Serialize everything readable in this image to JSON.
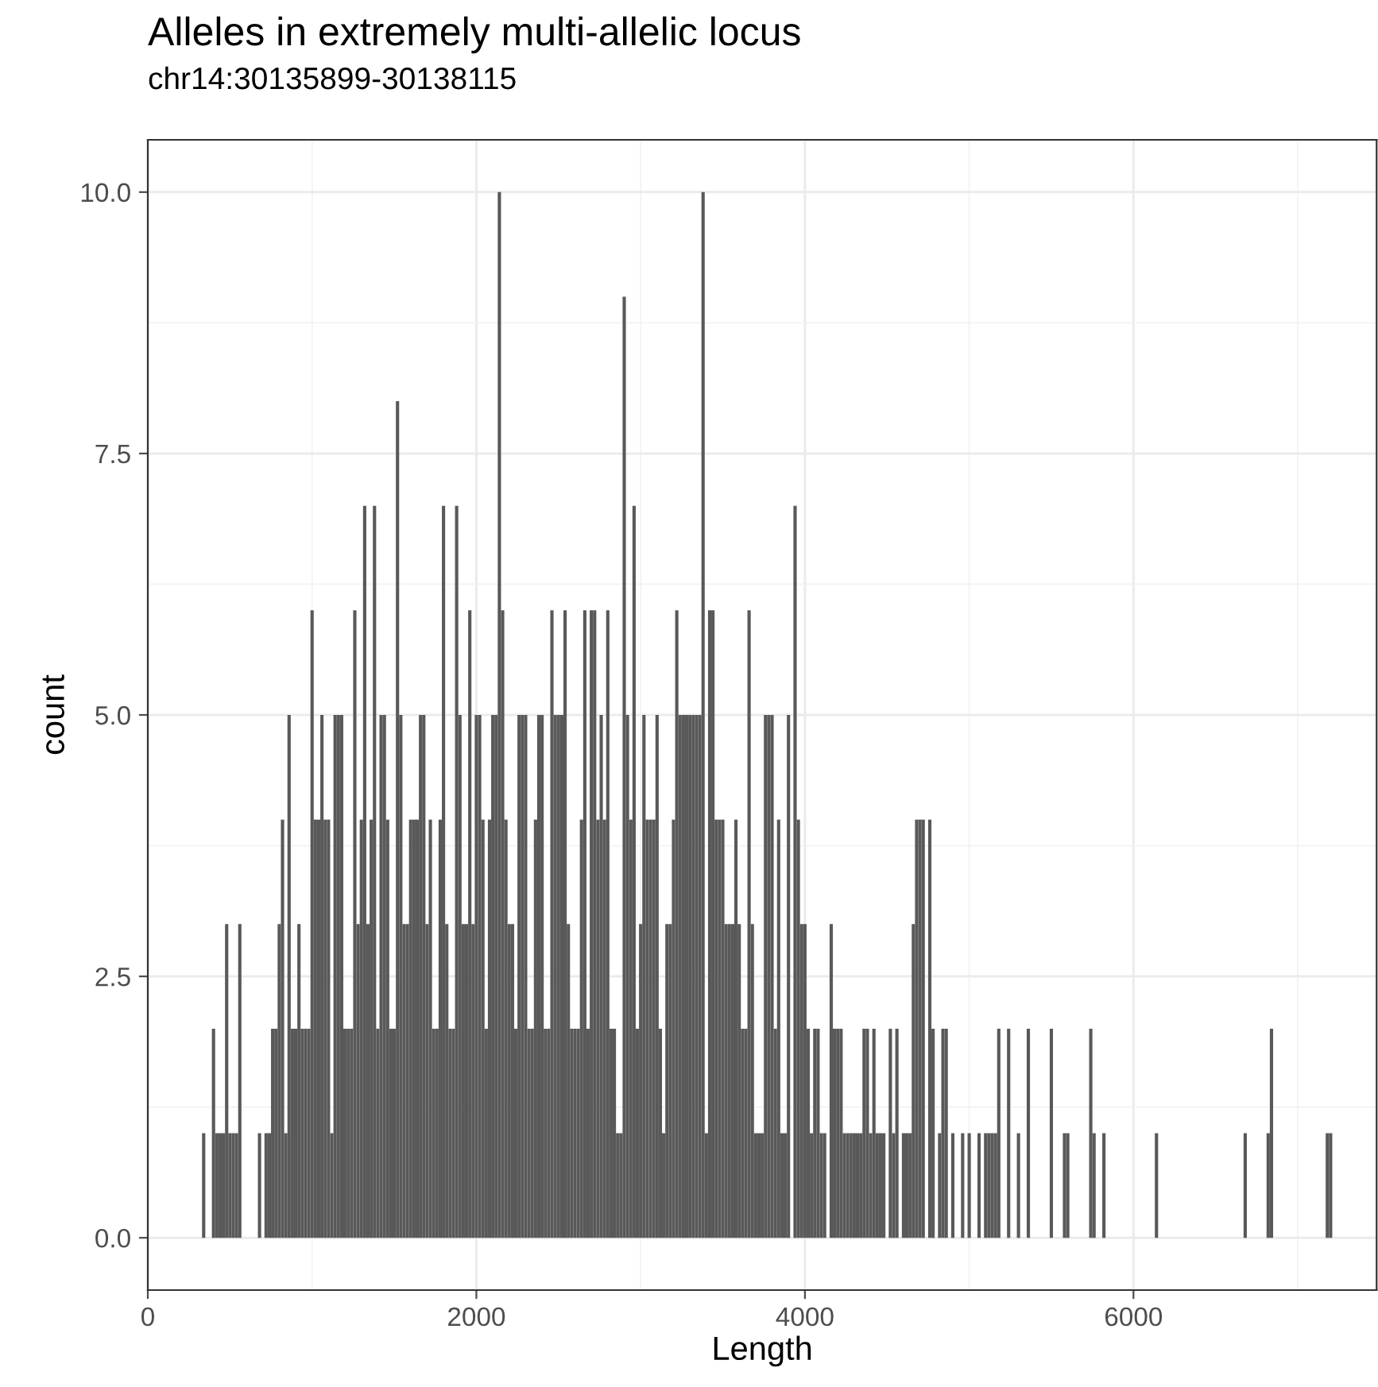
{
  "chart_data": {
    "type": "histogram",
    "title": "Alleles in extremely multi-allelic locus",
    "subtitle": "chr14:30135899-30138115",
    "xlabel": "Length",
    "ylabel": "count",
    "color": "#595959",
    "bins": [
      330,
      350,
      370,
      390,
      410,
      430,
      450,
      470,
      490,
      510,
      530,
      550,
      570,
      590,
      610,
      630,
      650,
      670,
      690,
      710,
      730,
      750,
      770,
      790,
      810,
      830,
      850,
      870,
      890,
      910,
      930,
      950,
      970,
      990,
      1010,
      1030,
      1050,
      1070,
      1090,
      1110,
      1130,
      1150,
      1170,
      1190,
      1210,
      1230,
      1250,
      1270,
      1290,
      1310,
      1330,
      1350,
      1370,
      1390,
      1410,
      1430,
      1450,
      1470,
      1490,
      1510,
      1530,
      1550,
      1570,
      1590,
      1610,
      1630,
      1650,
      1670,
      1690,
      1710,
      1730,
      1750,
      1770,
      1790,
      1810,
      1830,
      1850,
      1870,
      1890,
      1910,
      1930,
      1950,
      1970,
      1990,
      2010,
      2030,
      2050,
      2070,
      2090,
      2110,
      2130,
      2150,
      2170,
      2190,
      2210,
      2230,
      2250,
      2270,
      2290,
      2310,
      2330,
      2350,
      2370,
      2390,
      2410,
      2430,
      2450,
      2470,
      2490,
      2510,
      2530,
      2550,
      2570,
      2590,
      2610,
      2630,
      2650,
      2670,
      2690,
      2710,
      2730,
      2750,
      2770,
      2790,
      2810,
      2830,
      2850,
      2870,
      2890,
      2910,
      2930,
      2950,
      2970,
      2990,
      3010,
      3030,
      3050,
      3070,
      3090,
      3110,
      3130,
      3150,
      3170,
      3190,
      3210,
      3230,
      3250,
      3270,
      3290,
      3310,
      3330,
      3350,
      3370,
      3390,
      3410,
      3430,
      3450,
      3470,
      3490,
      3510,
      3530,
      3550,
      3570,
      3590,
      3610,
      3630,
      3650,
      3670,
      3690,
      3710,
      3730,
      3750,
      3770,
      3790,
      3810,
      3830,
      3850,
      3870,
      3890,
      3910,
      3930,
      3950,
      3970,
      3990,
      4010,
      4030,
      4050,
      4070,
      4090,
      4110,
      4130,
      4150,
      4170,
      4190,
      4210,
      4230,
      4250,
      4270,
      4290,
      4310,
      4330,
      4350,
      4370,
      4390,
      4410,
      4430,
      4450,
      4470,
      4490,
      4510,
      4530,
      4550,
      4570,
      4590,
      4610,
      4630,
      4650,
      4670,
      4690,
      4710,
      4730,
      4750,
      4770,
      4790,
      4810,
      4830,
      4850,
      4870,
      4890,
      4910,
      4930,
      4950,
      4970,
      4990,
      5010,
      5030,
      5050,
      5070,
      5090,
      5110,
      5130,
      5150,
      5170,
      5190,
      5210,
      5230,
      5250,
      5270,
      5290,
      5310,
      5330,
      5350,
      5370,
      5390,
      5410,
      5430,
      5450,
      5470,
      5490,
      5510,
      5530,
      5550,
      5570,
      5590,
      5610,
      5630,
      5650,
      5670,
      5690,
      5710,
      5730,
      5750,
      5770,
      5790,
      5810,
      5830,
      5850,
      5870,
      5890,
      5910,
      5930,
      5950,
      5970,
      5990,
      6010,
      6030,
      6050,
      6070,
      6090,
      6110,
      6130,
      6150,
      6170,
      6190,
      6210,
      6230,
      6250,
      6270,
      6290,
      6310,
      6330,
      6350,
      6370,
      6390,
      6410,
      6430,
      6450,
      6470,
      6490,
      6510,
      6530,
      6550,
      6570,
      6590,
      6610,
      6630,
      6650,
      6670,
      6690,
      6710,
      6730,
      6750,
      6770,
      6790,
      6810,
      6830,
      6850,
      6870,
      6890,
      6910,
      6930,
      6950,
      6970,
      6990,
      7010,
      7030,
      7050,
      7070,
      7090,
      7110,
      7130,
      7150,
      7170,
      7190,
      7210
    ],
    "values": [
      1,
      0,
      0,
      2,
      1,
      1,
      1,
      3,
      1,
      1,
      1,
      3,
      0,
      0,
      0,
      0,
      0,
      1,
      0,
      1,
      1,
      2,
      2,
      3,
      4,
      1,
      5,
      2,
      2,
      3,
      2,
      2,
      2,
      6,
      4,
      4,
      5,
      4,
      4,
      1,
      5,
      5,
      5,
      2,
      2,
      2,
      6,
      3,
      4,
      7,
      3,
      4,
      7,
      2,
      5,
      5,
      4,
      2,
      2,
      8,
      5,
      3,
      3,
      4,
      4,
      4,
      5,
      5,
      3,
      4,
      2,
      2,
      4,
      7,
      3,
      2,
      2,
      7,
      5,
      3,
      3,
      6,
      3,
      5,
      5,
      4,
      2,
      4,
      5,
      5,
      10,
      6,
      4,
      3,
      3,
      2,
      5,
      5,
      5,
      2,
      2,
      4,
      5,
      5,
      2,
      2,
      6,
      5,
      5,
      5,
      6,
      3,
      2,
      2,
      2,
      4,
      6,
      2,
      6,
      6,
      4,
      5,
      4,
      6,
      2,
      2,
      1,
      1,
      9,
      5,
      4,
      7,
      2,
      3,
      5,
      4,
      4,
      4,
      5,
      2,
      1,
      3,
      3,
      4,
      6,
      5,
      5,
      5,
      5,
      5,
      5,
      5,
      10,
      1,
      6,
      6,
      4,
      4,
      4,
      3,
      3,
      3,
      4,
      3,
      2,
      2,
      6,
      3,
      1,
      1,
      1,
      5,
      5,
      5,
      2,
      4,
      1,
      1,
      5,
      0,
      7,
      4,
      3,
      3,
      2,
      1,
      2,
      2,
      1,
      1,
      0,
      3,
      2,
      2,
      2,
      1,
      1,
      1,
      1,
      1,
      1,
      2,
      2,
      1,
      2,
      1,
      1,
      1,
      0,
      2,
      1,
      2,
      0,
      1,
      1,
      1,
      3,
      4,
      4,
      4,
      0,
      4,
      2,
      0,
      1,
      2,
      2,
      0,
      1,
      0,
      0,
      1,
      0,
      1,
      0,
      0,
      1,
      0,
      1,
      1,
      1,
      1,
      2,
      0,
      0,
      2,
      0,
      0,
      1,
      0,
      0,
      2,
      0,
      0,
      0,
      0,
      0,
      0,
      2,
      0,
      0,
      0,
      1,
      1,
      0,
      0,
      0,
      0,
      0,
      0,
      2,
      1,
      0,
      0,
      1,
      0,
      0,
      0,
      0,
      0,
      0,
      0,
      0,
      0,
      0,
      0,
      0,
      0,
      0,
      0,
      1,
      0,
      0,
      0,
      0,
      0,
      0,
      0,
      0,
      0,
      0,
      0,
      0,
      0,
      0,
      0,
      0,
      0,
      0,
      0,
      0,
      0,
      0,
      0,
      0,
      0,
      0,
      1,
      0,
      0,
      0,
      0,
      0,
      0,
      1,
      2,
      0,
      0,
      0,
      0,
      0,
      0,
      0,
      0,
      0,
      0,
      0,
      0,
      0,
      0,
      0,
      0,
      1,
      1
    ],
    "xlim": [
      0,
      7480
    ],
    "ylim": [
      -0.5,
      10.5
    ],
    "xticks": [
      0,
      2000,
      4000,
      6000
    ],
    "yticks": [
      {
        "value": 0,
        "label": "0.0"
      },
      {
        "value": 2.5,
        "label": "2.5"
      },
      {
        "value": 5,
        "label": "5.0"
      },
      {
        "value": 7.5,
        "label": "7.5"
      },
      {
        "value": 10,
        "label": "10.0"
      }
    ],
    "grid": true
  }
}
